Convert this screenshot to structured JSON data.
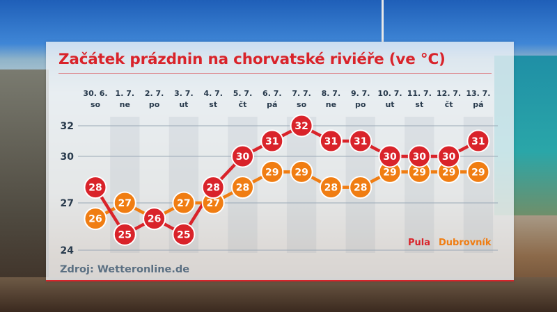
{
  "title": "Začátek prázdnin na chorvatské riviéře (ve °C)",
  "source": "Zdroj: Wetteronline.de",
  "colors": {
    "pula": "#d9232a",
    "dubrovnik": "#f07d12",
    "text": "#283a4c"
  },
  "chart_data": {
    "type": "line",
    "categories": [
      "30. 6.",
      "1. 7.",
      "2. 7.",
      "3. 7.",
      "4. 7.",
      "5. 7.",
      "6. 7.",
      "7. 7.",
      "8. 7.",
      "9. 7.",
      "10. 7.",
      "11. 7.",
      "12. 7.",
      "13. 7."
    ],
    "days": [
      "so",
      "ne",
      "po",
      "ut",
      "st",
      "čt",
      "pá",
      "so",
      "ne",
      "po",
      "ut",
      "st",
      "čt",
      "pá"
    ],
    "yticks": [
      24,
      27,
      30,
      32
    ],
    "ylim": [
      24,
      32
    ],
    "grid": true,
    "legend_position": "bottom-right",
    "series": [
      {
        "name": "Pula",
        "color": "#d9232a",
        "values": [
          28,
          25,
          26,
          25,
          28,
          30,
          31,
          32,
          31,
          31,
          30,
          30,
          30,
          31
        ]
      },
      {
        "name": "Dubrovník",
        "color": "#f07d12",
        "values": [
          26,
          27,
          26,
          27,
          27,
          28,
          29,
          29,
          28,
          28,
          29,
          29,
          29,
          29
        ]
      }
    ]
  }
}
